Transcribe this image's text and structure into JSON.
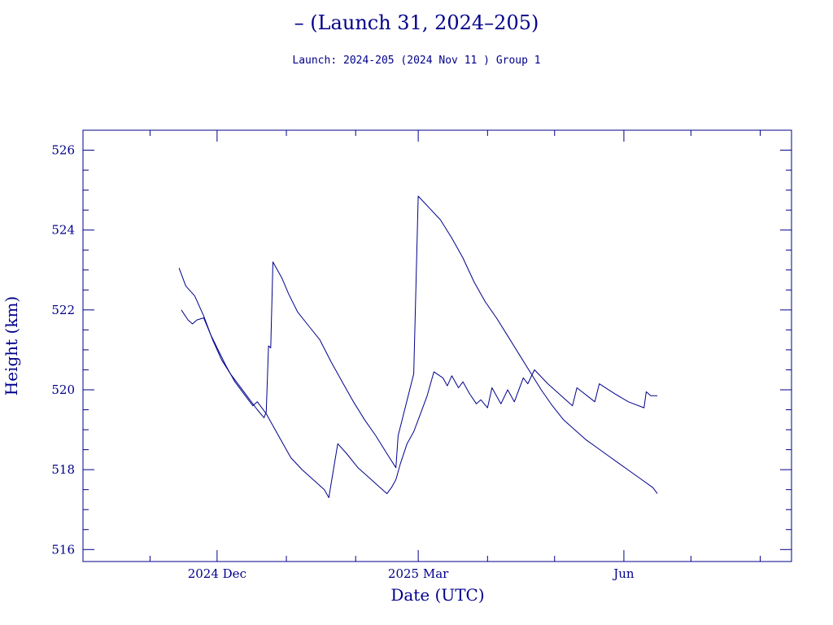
{
  "header": {
    "title": "– (Launch 31, 2024–205)",
    "subtitle": "Launch: 2024-205  (2024 Nov 11 )  Group 1"
  },
  "colors": {
    "ink": "#00008b",
    "background": "#ffffff"
  },
  "chart_data": {
    "type": "line",
    "xlabel": "Date (UTC)",
    "ylabel": "Height (km)",
    "ylim": [
      515.7,
      526.5
    ],
    "xlim": [
      "2024-10-02",
      "2025-08-15"
    ],
    "grid": false,
    "legend": "none",
    "x_tick_labels": [
      {
        "date": "2024-12-01",
        "label": "2024 Dec"
      },
      {
        "date": "2025-03-01",
        "label": "2025 Mar"
      },
      {
        "date": "2025-06-01",
        "label": "Jun"
      }
    ],
    "y_ticks": [
      516,
      518,
      520,
      522,
      524,
      526
    ],
    "series": [
      {
        "points": [
          [
            "2024-11-14",
            523.05
          ],
          [
            "2024-11-17",
            522.6
          ],
          [
            "2024-11-21",
            522.35
          ],
          [
            "2024-11-25",
            521.85
          ],
          [
            "2024-11-29",
            521.25
          ],
          [
            "2024-12-03",
            520.75
          ],
          [
            "2024-12-07",
            520.4
          ],
          [
            "2024-12-11",
            520.1
          ],
          [
            "2024-12-15",
            519.8
          ],
          [
            "2024-12-19",
            519.5
          ],
          [
            "2024-12-22",
            519.3
          ],
          [
            "2024-12-23",
            519.45
          ],
          [
            "2024-12-24",
            521.1
          ],
          [
            "2024-12-25",
            521.05
          ],
          [
            "2024-12-26",
            523.2
          ],
          [
            "2024-12-30",
            522.8
          ],
          [
            "2025-01-02",
            522.4
          ],
          [
            "2025-01-06",
            521.95
          ],
          [
            "2025-01-11",
            521.6
          ],
          [
            "2025-01-16",
            521.25
          ],
          [
            "2025-01-21",
            520.7
          ],
          [
            "2025-01-26",
            520.2
          ],
          [
            "2025-01-31",
            519.7
          ],
          [
            "2025-02-05",
            519.25
          ],
          [
            "2025-02-10",
            518.85
          ],
          [
            "2025-02-15",
            518.4
          ],
          [
            "2025-02-19",
            518.05
          ],
          [
            "2025-02-20",
            518.85
          ],
          [
            "2025-02-27",
            520.4
          ],
          [
            "2025-02-28",
            522.65
          ],
          [
            "2025-03-01",
            524.85
          ],
          [
            "2025-03-06",
            524.55
          ],
          [
            "2025-03-11",
            524.25
          ],
          [
            "2025-03-16",
            523.8
          ],
          [
            "2025-03-21",
            523.3
          ],
          [
            "2025-03-26",
            522.7
          ],
          [
            "2025-03-31",
            522.2
          ],
          [
            "2025-04-05",
            521.8
          ],
          [
            "2025-04-10",
            521.35
          ],
          [
            "2025-04-15",
            520.9
          ],
          [
            "2025-04-20",
            520.45
          ],
          [
            "2025-04-25",
            520.0
          ],
          [
            "2025-04-30",
            519.6
          ],
          [
            "2025-05-05",
            519.25
          ],
          [
            "2025-05-10",
            519.0
          ],
          [
            "2025-05-15",
            518.75
          ],
          [
            "2025-05-20",
            518.55
          ],
          [
            "2025-05-25",
            518.35
          ],
          [
            "2025-05-30",
            518.15
          ],
          [
            "2025-06-04",
            517.95
          ],
          [
            "2025-06-09",
            517.75
          ],
          [
            "2025-06-14",
            517.55
          ],
          [
            "2025-06-16",
            517.4
          ]
        ]
      },
      {
        "points": [
          [
            "2024-11-15",
            522.0
          ],
          [
            "2024-11-18",
            521.75
          ],
          [
            "2024-11-20",
            521.65
          ],
          [
            "2024-11-22",
            521.75
          ],
          [
            "2024-11-25",
            521.8
          ],
          [
            "2024-11-28",
            521.4
          ],
          [
            "2024-12-01",
            521.05
          ],
          [
            "2024-12-05",
            520.6
          ],
          [
            "2024-12-09",
            520.2
          ],
          [
            "2024-12-13",
            519.9
          ],
          [
            "2024-12-17",
            519.6
          ],
          [
            "2024-12-19",
            519.7
          ],
          [
            "2024-12-23",
            519.4
          ],
          [
            "2024-12-26",
            519.1
          ],
          [
            "2024-12-30",
            518.7
          ],
          [
            "2025-01-03",
            518.3
          ],
          [
            "2025-01-08",
            518.0
          ],
          [
            "2025-01-13",
            517.75
          ],
          [
            "2025-01-18",
            517.5
          ],
          [
            "2025-01-20",
            517.3
          ],
          [
            "2025-01-24",
            518.65
          ],
          [
            "2025-01-28",
            518.4
          ],
          [
            "2025-02-02",
            518.05
          ],
          [
            "2025-02-07",
            517.8
          ],
          [
            "2025-02-12",
            517.55
          ],
          [
            "2025-02-15",
            517.4
          ],
          [
            "2025-02-17",
            517.55
          ],
          [
            "2025-02-19",
            517.75
          ],
          [
            "2025-02-21",
            518.15
          ],
          [
            "2025-02-24",
            518.65
          ],
          [
            "2025-02-27",
            518.95
          ],
          [
            "2025-03-02",
            519.4
          ],
          [
            "2025-03-05",
            519.85
          ],
          [
            "2025-03-08",
            520.45
          ],
          [
            "2025-03-12",
            520.3
          ],
          [
            "2025-03-14",
            520.1
          ],
          [
            "2025-03-16",
            520.35
          ],
          [
            "2025-03-19",
            520.05
          ],
          [
            "2025-03-21",
            520.2
          ],
          [
            "2025-03-24",
            519.9
          ],
          [
            "2025-03-27",
            519.65
          ],
          [
            "2025-03-29",
            519.75
          ],
          [
            "2025-04-01",
            519.55
          ],
          [
            "2025-04-03",
            520.05
          ],
          [
            "2025-04-07",
            519.65
          ],
          [
            "2025-04-10",
            520.0
          ],
          [
            "2025-04-13",
            519.7
          ],
          [
            "2025-04-17",
            520.3
          ],
          [
            "2025-04-19",
            520.15
          ],
          [
            "2025-04-22",
            520.5
          ],
          [
            "2025-04-28",
            520.15
          ],
          [
            "2025-05-03",
            519.9
          ],
          [
            "2025-05-09",
            519.6
          ],
          [
            "2025-05-11",
            520.05
          ],
          [
            "2025-05-19",
            519.7
          ],
          [
            "2025-05-21",
            520.15
          ],
          [
            "2025-05-28",
            519.9
          ],
          [
            "2025-06-03",
            519.7
          ],
          [
            "2025-06-10",
            519.55
          ],
          [
            "2025-06-11",
            519.95
          ],
          [
            "2025-06-13",
            519.85
          ],
          [
            "2025-06-16",
            519.85
          ]
        ]
      }
    ]
  }
}
